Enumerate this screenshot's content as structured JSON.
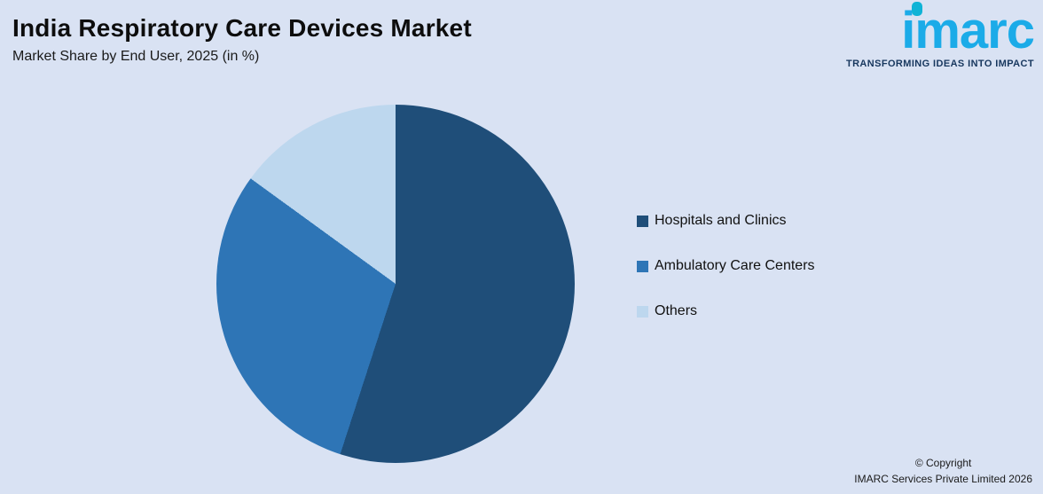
{
  "header": {
    "title": "India Respiratory Care Devices Market",
    "subtitle": "Market Share by End User, 2025 (in %)"
  },
  "logo": {
    "text": "imarc",
    "tagline": "TRANSFORMING IDEAS INTO IMPACT"
  },
  "chart_data": {
    "type": "pie",
    "title": "Market Share by End User, 2025 (in %)",
    "categories": [
      "Hospitals and Clinics",
      "Ambulatory Care Centers",
      "Others"
    ],
    "values": [
      55,
      30,
      15
    ],
    "colors": [
      "#1f4e79",
      "#2e75b6",
      "#bdd7ee"
    ],
    "start_angle_deg": 0,
    "direction": "clockwise",
    "legend_position": "right",
    "data_labels": false
  },
  "legend": {
    "items": [
      {
        "label": "Hospitals and Clinics",
        "color": "#1f4e79"
      },
      {
        "label": "Ambulatory Care Centers",
        "color": "#2e75b6"
      },
      {
        "label": "Others",
        "color": "#bdd7ee"
      }
    ]
  },
  "footer": {
    "copyright_line1": "© Copyright",
    "copyright_line2": "IMARC Services Private Limited 2026"
  },
  "colors": {
    "background": "#d9e2f3",
    "brand": "#1babe8"
  }
}
